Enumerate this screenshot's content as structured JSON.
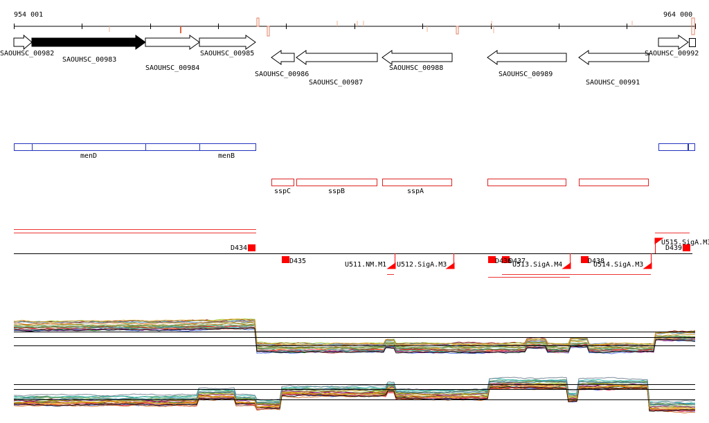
{
  "coordinates": {
    "start_label": "954 001",
    "end_label": "964 000"
  },
  "genes": [
    {
      "name": "SAOUHSC_00982",
      "dir": "+"
    },
    {
      "name": "SAOUHSC_00983",
      "dir": "+",
      "highlighted": true
    },
    {
      "name": "SAOUHSC_00984",
      "dir": "+"
    },
    {
      "name": "SAOUHSC_00985",
      "dir": "+"
    },
    {
      "name": "SAOUHSC_00986",
      "dir": "-"
    },
    {
      "name": "SAOUHSC_00987",
      "dir": "-"
    },
    {
      "name": "SAOUHSC_00988",
      "dir": "-"
    },
    {
      "name": "SAOUHSC_00989",
      "dir": "-"
    },
    {
      "name": "SAOUHSC_00991",
      "dir": "-"
    },
    {
      "name": "SAOUHSC_00992",
      "dir": "+"
    }
  ],
  "operon_plus": {
    "labels": [
      "menD",
      "menB"
    ],
    "color": "#2233bb"
  },
  "operon_minus": {
    "labels": [
      "sspC",
      "sspB",
      "sspA"
    ],
    "color": "#dd2222"
  },
  "segments": {
    "down": [
      "D434",
      "D435",
      "D436",
      "D437",
      "D438",
      "D439"
    ],
    "up": [
      "U511.NM.M1",
      "U512.SigA.M3",
      "U513.SigA.M4",
      "U514.SigA.M3",
      "U515.SigA.M3"
    ],
    "color": "#ff0000"
  },
  "tracks": {
    "plus_strand": {
      "level_before_sspC": "high",
      "level_after": "low"
    },
    "minus_strand": {
      "level_before_sspC": "low",
      "level_after": "high"
    }
  }
}
